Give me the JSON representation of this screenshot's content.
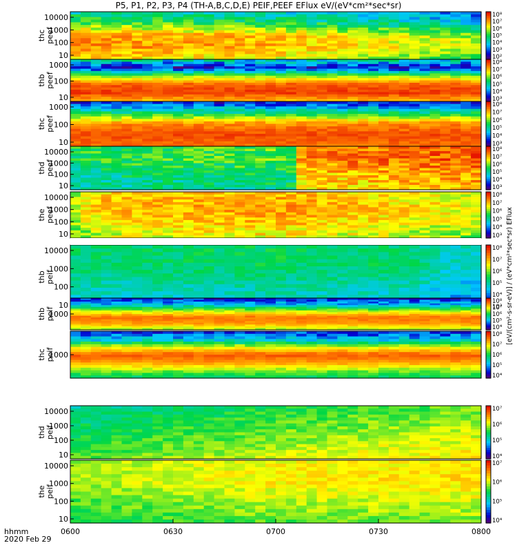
{
  "title": "P5, P1, P2, P3, P4 (TH-A,B,C,D,E) PEIF,PEEF EFlux eV/(eV*cm²*sec*sr)",
  "x_axis": {
    "label_line1": "hhmm",
    "label_line2": "2020 Feb 29"
  },
  "colorbar_label": "[eV/(cm²-s-sr-eV)] / (eV*cm²*sec*sr) EFlux",
  "colors": {
    "frame": "#000000",
    "background": "#ffffff"
  },
  "chart_data": {
    "type": "heatmap",
    "colormap": "rainbow (purple-blue-cyan-green-yellow-red)",
    "x": {
      "ticks": [
        "0600",
        "0630",
        "0700",
        "0730",
        "0800"
      ],
      "range_minutes": [
        0,
        120
      ]
    },
    "panels": [
      {
        "name": "thc peef",
        "ylabel": [
          "thc",
          "peef"
        ],
        "yticks": [
          "10000",
          "1000",
          "100",
          "10"
        ],
        "colorbar_ticks": [
          "10⁸",
          "10⁷",
          "10⁶",
          "10⁵",
          "10⁴",
          "10³",
          "10²"
        ],
        "bands": [
          {
            "v": 0.4,
            "j": 0.1
          },
          {
            "v": 0.55,
            "j": 0.1
          },
          {
            "v": 0.8,
            "j": 0.08
          },
          {
            "v": 0.82,
            "j": 0.08
          },
          {
            "v": 0.72,
            "j": 0.08
          }
        ],
        "trend": [
          [
            0,
            0
          ],
          [
            60,
            -0.05
          ],
          [
            120,
            -0.2
          ]
        ]
      },
      {
        "name": "thb peef",
        "ylabel": [
          "thb",
          "peef"
        ],
        "yticks": [
          "1000",
          "100",
          "10"
        ],
        "colorbar_ticks": [
          "10⁸",
          "10⁷",
          "10⁶",
          "10⁵",
          "10⁴",
          "10³"
        ],
        "bands": [
          {
            "v": 0.4,
            "j": 0.15
          },
          {
            "v": 0.12,
            "j": 0.12
          },
          {
            "v": 0.6,
            "j": 0.05
          },
          {
            "v": 0.88,
            "j": 0.04
          },
          {
            "v": 0.92,
            "j": 0.04
          },
          {
            "v": 0.75,
            "j": 0.05
          }
        ],
        "trend": [
          [
            0,
            0
          ],
          [
            120,
            0
          ]
        ]
      },
      {
        "name": "thc peef (lower)",
        "ylabel": [
          "thc",
          "peef"
        ],
        "yticks": [
          "1000",
          "100",
          "10"
        ],
        "colorbar_ticks": [
          "10⁸",
          "10⁷",
          "10⁶",
          "10⁵",
          "10⁴",
          "10³"
        ],
        "bands": [
          {
            "v": 0.1,
            "j": 0.12
          },
          {
            "v": 0.45,
            "j": 0.08
          },
          {
            "v": 0.82,
            "j": 0.05
          },
          {
            "v": 0.9,
            "j": 0.04
          },
          {
            "v": 0.85,
            "j": 0.04
          }
        ],
        "trend": [
          [
            0,
            0
          ],
          [
            120,
            0
          ]
        ]
      },
      {
        "name": "thd peef",
        "ylabel": [
          "thd",
          "peef"
        ],
        "yticks": [
          "10000",
          "1000",
          "100",
          "10"
        ],
        "colorbar_ticks": [
          "10⁸",
          "10⁷",
          "10⁶",
          "10⁵",
          "10⁴",
          "10³"
        ],
        "bands": [
          {
            "v": 0.5,
            "j": 0.1
          },
          {
            "v": 0.5,
            "j": 0.1
          },
          {
            "v": 0.42,
            "j": 0.1
          },
          {
            "v": 0.38,
            "j": 0.1
          }
        ],
        "trend": [
          [
            0,
            0
          ],
          [
            66,
            0.05
          ],
          [
            67,
            0.32
          ],
          [
            120,
            0.38
          ]
        ]
      },
      {
        "name": "the peef",
        "ylabel": [
          "the",
          "peef"
        ],
        "yticks": [
          "10000",
          "1000",
          "100",
          "10"
        ],
        "colorbar_ticks": [
          "10⁸",
          "10⁷",
          "10⁶",
          "10⁵",
          "10⁴",
          "10³"
        ],
        "bands": [
          {
            "v": 0.72,
            "j": 0.08
          },
          {
            "v": 0.76,
            "j": 0.08
          },
          {
            "v": 0.72,
            "j": 0.08
          },
          {
            "v": 0.65,
            "j": 0.1
          }
        ],
        "trend": [
          [
            0,
            -0.12
          ],
          [
            10,
            0
          ],
          [
            60,
            0.04
          ],
          [
            120,
            -0.08
          ]
        ]
      },
      {
        "name": "thb peif",
        "ylabel": [
          "thb",
          "peif"
        ],
        "yticks": [
          "10000",
          "1000",
          "100",
          "10"
        ],
        "colorbar_ticks": [
          "10⁸",
          "10⁷",
          "10⁶",
          "10⁵",
          "10⁴",
          "10³"
        ],
        "bands": [
          {
            "v": 0.45,
            "j": 0.06
          },
          {
            "v": 0.45,
            "j": 0.06
          },
          {
            "v": 0.38,
            "j": 0.06
          },
          {
            "v": 0.32,
            "j": 0.06
          }
        ],
        "trend": [
          [
            0,
            0
          ],
          [
            60,
            0.02
          ],
          [
            100,
            0
          ],
          [
            110,
            -0.08
          ],
          [
            120,
            -0.08
          ]
        ]
      },
      {
        "name": "thb peif (energy)",
        "ylabel": [
          "thb",
          "peif"
        ],
        "yticks": [
          "1000"
        ],
        "colorbar_ticks": [
          "10⁸",
          "10⁷",
          "10⁶",
          "10⁵",
          "10⁴"
        ],
        "bands": [
          {
            "v": 0.12,
            "j": 0.1
          },
          {
            "v": 0.3,
            "j": 0.1
          },
          {
            "v": 0.62,
            "j": 0.05
          },
          {
            "v": 0.85,
            "j": 0.03
          },
          {
            "v": 0.8,
            "j": 0.03
          },
          {
            "v": 0.6,
            "j": 0.05
          }
        ],
        "trend": [
          [
            0,
            0
          ],
          [
            120,
            0
          ]
        ]
      },
      {
        "name": "thc peif",
        "ylabel": [
          "thc",
          "peif"
        ],
        "yticks": [
          "1000"
        ],
        "colorbar_ticks": [
          "10⁸",
          "10⁷",
          "10⁶",
          "10⁵",
          "10⁴"
        ],
        "bands": [
          {
            "v": 0.15,
            "j": 0.1
          },
          {
            "v": 0.3,
            "j": 0.1
          },
          {
            "v": 0.65,
            "j": 0.05
          },
          {
            "v": 0.88,
            "j": 0.03
          },
          {
            "v": 0.8,
            "j": 0.03
          },
          {
            "v": 0.6,
            "j": 0.05
          },
          {
            "v": 0.45,
            "j": 0.05
          }
        ],
        "trend": [
          [
            0,
            0
          ],
          [
            120,
            0
          ]
        ]
      },
      {
        "name": "thd peif",
        "ylabel": [
          "thd",
          "peif"
        ],
        "yticks": [
          "10000",
          "1000",
          "100",
          "10"
        ],
        "colorbar_ticks": [
          "10⁷",
          "10⁶",
          "10⁵",
          "10⁴"
        ],
        "bands": [
          {
            "v": 0.45,
            "j": 0.06
          },
          {
            "v": 0.5,
            "j": 0.06
          },
          {
            "v": 0.55,
            "j": 0.06
          },
          {
            "v": 0.6,
            "j": 0.06
          }
        ],
        "trend": [
          [
            0,
            -0.05
          ],
          [
            60,
            0.05
          ],
          [
            120,
            0.12
          ]
        ]
      },
      {
        "name": "the peif",
        "ylabel": [
          "the",
          "peif"
        ],
        "yticks": [
          "10000",
          "1000",
          "100",
          "10"
        ],
        "colorbar_ticks": [
          "10⁷",
          "10⁶",
          "10⁵",
          "10⁴"
        ],
        "bands": [
          {
            "v": 0.6,
            "j": 0.05
          },
          {
            "v": 0.62,
            "j": 0.05
          },
          {
            "v": 0.55,
            "j": 0.06
          },
          {
            "v": 0.48,
            "j": 0.06
          }
        ],
        "trend": [
          [
            0,
            0
          ],
          [
            60,
            0.08
          ],
          [
            120,
            0.1
          ]
        ]
      }
    ]
  }
}
